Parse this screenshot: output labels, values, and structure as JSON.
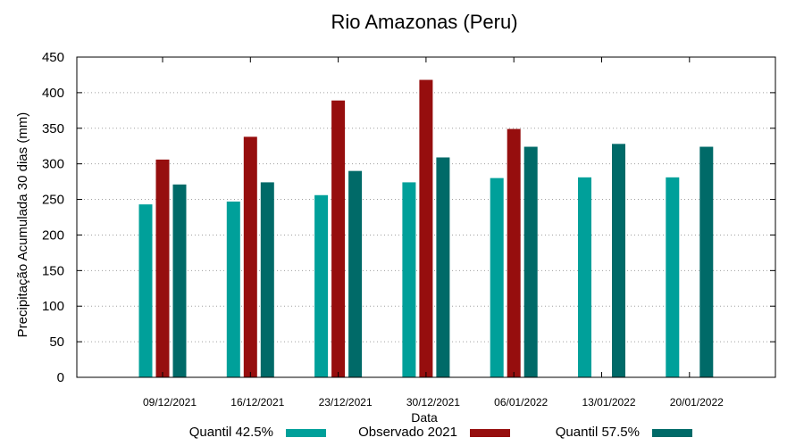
{
  "chart_data": {
    "type": "bar",
    "title": "Rio Amazonas (Peru)",
    "xlabel": "Data",
    "ylabel": "Precipitação Acumulada 30 dias (mm)",
    "ylim": [
      0,
      450
    ],
    "yticks": [
      0,
      50,
      100,
      150,
      200,
      250,
      300,
      350,
      400,
      450
    ],
    "grid": true,
    "legend_position": "bottom",
    "categories": [
      "09/12/2021",
      "16/12/2021",
      "23/12/2021",
      "30/12/2021",
      "06/01/2022",
      "13/01/2022",
      "20/01/2022"
    ],
    "series": [
      {
        "name": "Quantil 42.5%",
        "color": "#00a09a",
        "values": [
          243,
          247,
          256,
          274,
          280,
          281,
          281
        ]
      },
      {
        "name": "Observado 2021",
        "color": "#960e0e",
        "values": [
          306,
          338,
          389,
          418,
          349,
          null,
          null
        ]
      },
      {
        "name": "Quantil 57.5%",
        "color": "#006a68",
        "values": [
          271,
          274,
          290,
          309,
          324,
          328,
          324
        ]
      }
    ]
  }
}
